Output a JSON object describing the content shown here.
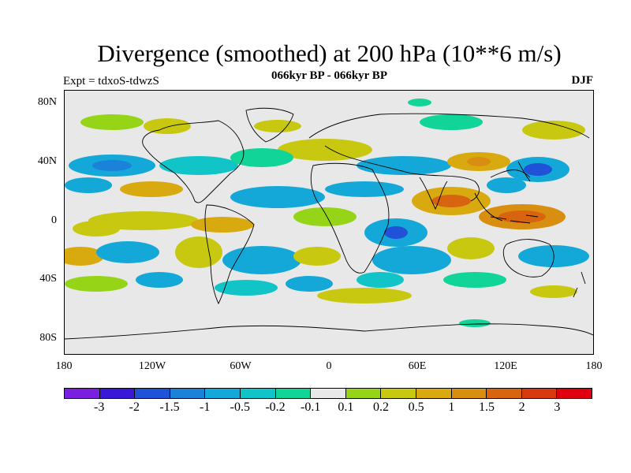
{
  "title": "Divergence (smoothed) at 200 hPa (10**6 m/s)",
  "subtitle": "066kyr BP - 066kyr BP",
  "experiment": "Expt = tdxoS-tdwzS",
  "season": "DJF",
  "lat_labels": [
    "80N",
    "40N",
    "0",
    "40S",
    "80S"
  ],
  "lon_labels": [
    "180",
    "120W",
    "60W",
    "0",
    "60E",
    "120E",
    "180"
  ],
  "legend": {
    "colors": [
      "#7a1ee0",
      "#3a18d8",
      "#1f52d6",
      "#1a82d8",
      "#14a8d8",
      "#10c4c8",
      "#10d498",
      "#e8e8e8",
      "#96d418",
      "#c8c810",
      "#d8aa10",
      "#d88e10",
      "#d86410",
      "#d83a10",
      "#e00010"
    ],
    "labels": [
      "-3",
      "-2",
      "-1.5",
      "-1",
      "-0.5",
      "-0.2",
      "-0.1",
      "0.1",
      "0.2",
      "0.5",
      "1",
      "1.5",
      "2",
      "3"
    ]
  },
  "colors": {
    "background": "#e8e8e8",
    "coastline": "#000000"
  }
}
